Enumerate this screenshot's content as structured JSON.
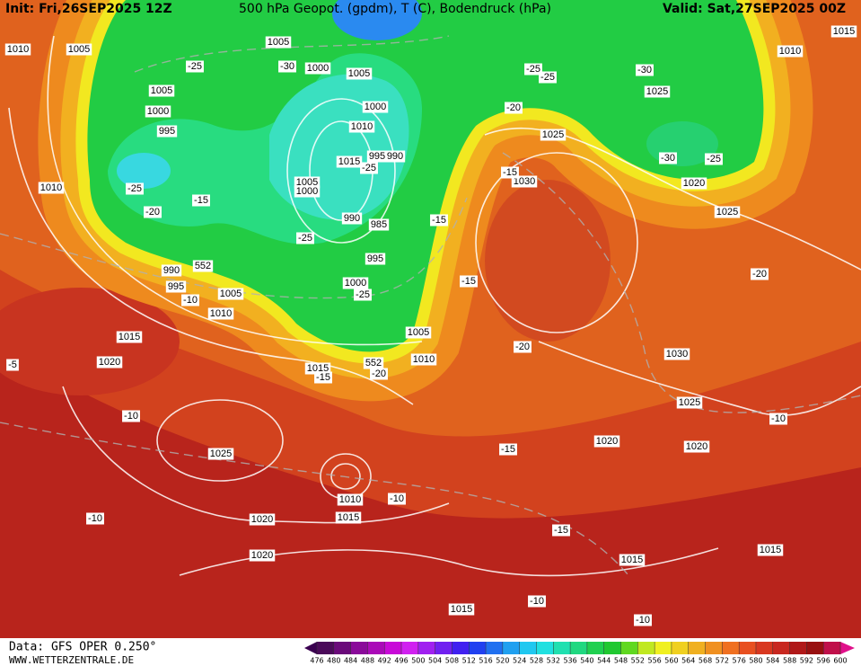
{
  "header": {
    "init": "Init: Fri,26SEP2025 12Z",
    "title": "500 hPa Geopot. (gpdm), T (C), Bodendruck (hPa)",
    "valid": "Valid: Sat,27SEP2025 00Z"
  },
  "footer": {
    "data_source": "Data: GFS OPER 0.250°",
    "website": "WWW.WETTERZENTRALE.DE"
  },
  "colorbar": {
    "labels": [
      476,
      480,
      484,
      488,
      492,
      496,
      500,
      504,
      508,
      512,
      516,
      520,
      524,
      528,
      532,
      536,
      540,
      544,
      548,
      552,
      556,
      560,
      564,
      568,
      572,
      576,
      580,
      584,
      588,
      592,
      596,
      600
    ],
    "colors": [
      "#4b0a5a",
      "#6a0a7a",
      "#8a0a9a",
      "#aa0ab8",
      "#c80ad8",
      "#d020f0",
      "#a020f0",
      "#7020f0",
      "#4020f0",
      "#2040f0",
      "#2070f0",
      "#20a0f0",
      "#20c8f0",
      "#20e0e0",
      "#20e0b0",
      "#20d880",
      "#20d050",
      "#20c830",
      "#60d820",
      "#c0e820",
      "#f0f020",
      "#f0d020",
      "#f0b020",
      "#f09020",
      "#f07020",
      "#e85020",
      "#d83820",
      "#c82820",
      "#b01818",
      "#981010",
      "#c0104a"
    ]
  },
  "map": {
    "pressure_labels": [
      "1010",
      "1005",
      "1005",
      "1000",
      "1005",
      "1005",
      "1000",
      "995",
      "1000",
      "1010",
      "1025",
      "1010",
      "1015",
      "1025",
      "1015",
      "995",
      "990",
      "1030",
      "1020",
      "1010",
      "1005",
      "1000",
      "990",
      "985",
      "1025",
      "995",
      "990",
      "995",
      "1000",
      "1005",
      "1010",
      "1005",
      "1015",
      "1010",
      "1030",
      "1020",
      "1015",
      "1025",
      "1025",
      "1020",
      "1020",
      "1010",
      "1015",
      "1020",
      "1020",
      "1015",
      "1015",
      "1015"
    ],
    "temperature_labels": [
      "-25",
      "-30",
      "-25",
      "-25",
      "-30",
      "-25",
      "-25",
      "-15",
      "-20",
      "-15",
      "-30",
      "-25",
      "-15",
      "-25",
      "-25",
      "-20",
      "-15",
      "-20",
      "-10",
      "-20",
      "-20",
      "-15",
      "-5",
      "-10",
      "-10",
      "-15",
      "-10",
      "-10",
      "-15",
      "-10",
      "-10"
    ],
    "height_labels": [
      "552",
      "552"
    ]
  }
}
